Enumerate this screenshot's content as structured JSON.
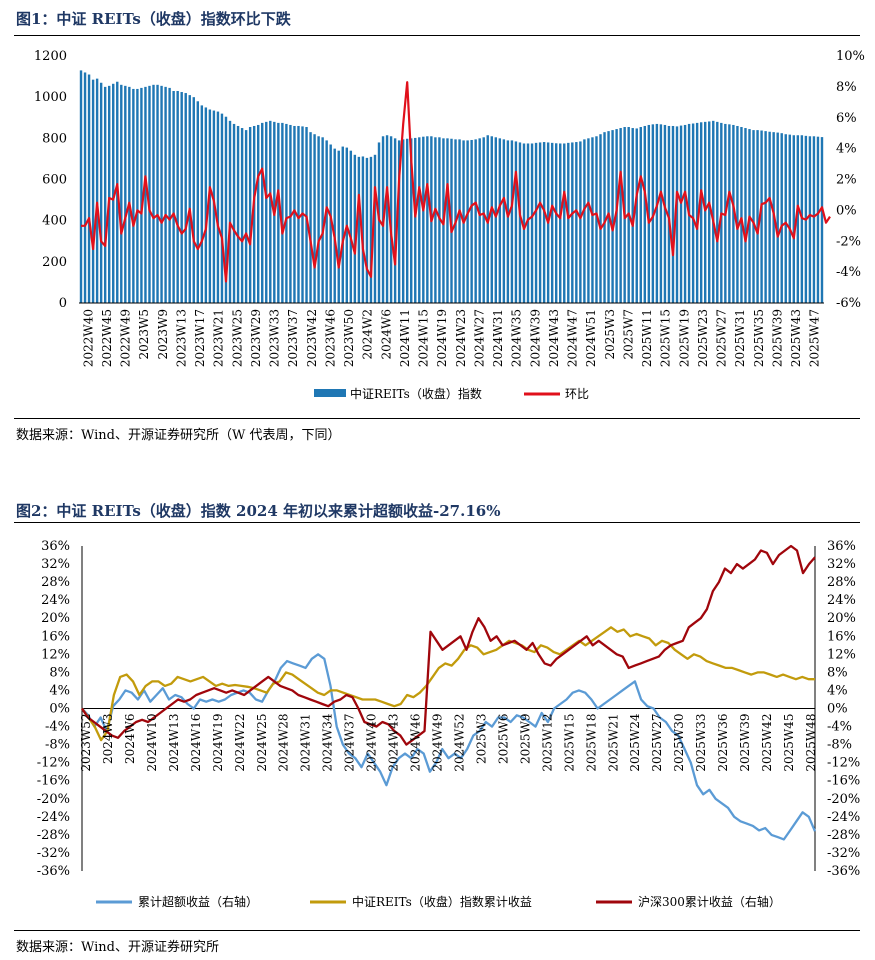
{
  "figures": [
    {
      "title": "图1：中证 REITs（收盘）指数环比下跌",
      "source": "数据来源：Wind、开源证券研究所（W 代表周，下同）"
    },
    {
      "title": "图2：中证 REITs（收盘）指数 2024 年初以来累计超额收益-27.16%",
      "source": "数据来源：Wind、开源证券研究所"
    }
  ],
  "colors": {
    "bar": "#1f77b4",
    "line_red": "#e0101b",
    "line_blue": "#5b9bd5",
    "line_gold": "#c29b0c",
    "line_darkred": "#a0060c",
    "title": "#1f3864"
  },
  "chart_data": [
    {
      "type": "bar",
      "combo": "bar + line (dual axis)",
      "x_ticks": [
        "2022W40",
        "2022W45",
        "2022W49",
        "2023W5",
        "2023W9",
        "2023W13",
        "2023W17",
        "2023W21",
        "2023W25",
        "2023W29",
        "2023W33",
        "2023W37",
        "2023W42",
        "2023W46",
        "2023W50",
        "2024W2",
        "2024W6",
        "2024W11",
        "2024W15",
        "2024W19",
        "2024W23",
        "2024W27",
        "2024W31",
        "2024W35",
        "2024W39",
        "2024W43",
        "2024W47",
        "2024W51",
        "2025W3",
        "2025W7",
        "2025W11",
        "2025W15",
        "2025W19",
        "2025W23",
        "2025W27",
        "2025W31",
        "2025W35",
        "2025W39",
        "2025W43",
        "2025W47"
      ],
      "y_left": {
        "range": [
          0,
          1200
        ],
        "ticks": [
          "0",
          "200",
          "400",
          "600",
          "800",
          "1000",
          "1200"
        ]
      },
      "y_right": {
        "range": [
          -6,
          10
        ],
        "ticks": [
          "-6%",
          "-4%",
          "-2%",
          "0%",
          "2%",
          "4%",
          "6%",
          "8%",
          "10%"
        ]
      },
      "legend": [
        "中证REITs（收盘）指数",
        "环比"
      ],
      "legend_position": "bottom",
      "series": [
        {
          "name": "中证REITs（收盘）指数",
          "axis": "left",
          "values": [
            1130,
            1120,
            1110,
            1085,
            1090,
            1070,
            1050,
            1055,
            1065,
            1075,
            1060,
            1055,
            1050,
            1040,
            1040,
            1045,
            1050,
            1055,
            1060,
            1060,
            1055,
            1050,
            1045,
            1030,
            1030,
            1025,
            1020,
            1010,
            1000,
            980,
            960,
            950,
            940,
            935,
            930,
            920,
            905,
            885,
            870,
            860,
            850,
            840,
            855,
            860,
            865,
            875,
            880,
            885,
            880,
            875,
            875,
            870,
            865,
            860,
            860,
            858,
            855,
            830,
            820,
            810,
            805,
            790,
            770,
            750,
            740,
            760,
            755,
            740,
            720,
            710,
            712,
            705,
            710,
            720,
            780,
            810,
            815,
            810,
            800,
            790,
            795,
            798,
            800,
            802,
            805,
            808,
            810,
            810,
            805,
            805,
            800,
            800,
            798,
            795,
            795,
            790,
            790,
            792,
            795,
            800,
            805,
            815,
            810,
            805,
            800,
            795,
            790,
            790,
            785,
            780,
            775,
            775,
            775,
            778,
            780,
            782,
            780,
            778,
            776,
            775,
            775,
            778,
            780,
            782,
            785,
            795,
            800,
            805,
            810,
            820,
            830,
            835,
            840,
            845,
            850,
            855,
            855,
            850,
            848,
            855,
            860,
            865,
            868,
            870,
            868,
            865,
            860,
            860,
            858,
            862,
            865,
            870,
            872,
            875,
            878,
            880,
            882,
            885,
            880,
            875,
            870,
            868,
            865,
            860,
            855,
            850,
            845,
            840,
            840,
            838,
            835,
            832,
            830,
            828,
            825,
            820,
            818,
            815,
            815,
            815,
            812,
            810,
            810,
            808,
            806
          ]
        },
        {
          "name": "环比",
          "axis": "right",
          "unit": "%",
          "values": [
            -1.0,
            -1.0,
            -0.5,
            -2.5,
            0.5,
            -2.0,
            -2.3,
            0.8,
            0.7,
            1.7,
            -1.5,
            -0.5,
            0.5,
            -1.0,
            0.0,
            -0.2,
            2.2,
            0.0,
            -0.5,
            -0.3,
            -0.8,
            -0.3,
            -0.6,
            -0.2,
            -1.0,
            -1.5,
            -1.2,
            0.1,
            -2.0,
            -2.5,
            -2.0,
            -1.2,
            1.5,
            0.6,
            -1.0,
            -1.8,
            -4.6,
            -0.8,
            -1.3,
            -1.7,
            -2.0,
            -1.5,
            -2.2,
            0.8,
            2.2,
            2.7,
            0.8,
            1.1,
            -0.3,
            1.3,
            -1.5,
            -0.5,
            -0.4,
            0.0,
            -0.5,
            -0.2,
            -0.4,
            -2.0,
            -3.7,
            -2.0,
            -1.5,
            0.2,
            -0.4,
            -1.8,
            -3.7,
            -2.0,
            -1.0,
            -1.8,
            -2.8,
            1.0,
            -2.5,
            -3.8,
            -4.3,
            1.5,
            -0.6,
            -1.0,
            1.5,
            -1.5,
            -3.5,
            2.0,
            5.6,
            8.3,
            3.3,
            -0.4,
            1.5,
            0.0,
            1.7,
            -0.7,
            0.1,
            -0.5,
            -0.9,
            1.7,
            -1.4,
            -0.8,
            0.0,
            -0.8,
            -0.2,
            0.3,
            0.5,
            -0.3,
            -0.2,
            -0.8,
            0.2,
            -0.4,
            0.3,
            0.8,
            -0.4,
            0.3,
            2.5,
            -0.3,
            -1.2,
            -0.6,
            -0.4,
            0.0,
            0.5,
            0.0,
            -0.8,
            0.3,
            -0.2,
            -0.5,
            1.2,
            -0.5,
            -0.2,
            0.0,
            -0.5,
            0.1,
            0.5,
            -0.3,
            -0.2,
            -1.2,
            -0.8,
            -0.2,
            -1.3,
            0.0,
            2.5,
            -0.5,
            -0.2,
            -1.0,
            1.0,
            2.2,
            1.2,
            -0.8,
            -0.4,
            0.3,
            1.2,
            0.2,
            -0.5,
            -2.9,
            1.2,
            0.5,
            1.2,
            -0.3,
            -0.5,
            -1.2,
            1.3,
            0.0,
            0.5,
            -0.7,
            -2.0,
            -0.2,
            -0.3,
            1.2,
            0.3,
            -1.2,
            -0.5,
            -2.0,
            -0.4,
            -0.8,
            -1.5,
            0.4,
            0.5,
            0.8,
            -0.2,
            -1.7,
            -1.0,
            -0.8,
            -1.2,
            -1.8,
            0.3,
            -0.5,
            -0.6,
            -0.3,
            -0.4,
            -0.2,
            0.2,
            -0.8,
            -0.4
          ]
        }
      ]
    },
    {
      "type": "line",
      "x_ticks": [
        "2023W52",
        "2024W3",
        "2024W6",
        "2024W10",
        "2024W13",
        "2024W16",
        "2024W19",
        "2024W22",
        "2024W25",
        "2024W28",
        "2024W31",
        "2024W34",
        "2024W37",
        "2024W40",
        "2024W43",
        "2024W46",
        "2024W49",
        "2024W52",
        "2025W3",
        "2025W6",
        "2025W9",
        "2025W12",
        "2025W15",
        "2025W18",
        "2025W21",
        "2025W24",
        "2025W27",
        "2025W30",
        "2025W33",
        "2025W36",
        "2025W39",
        "2025W42",
        "2025W45",
        "2025W48"
      ],
      "y_left": {
        "range": [
          -36,
          36
        ],
        "ticks": [
          "-36%",
          "-32%",
          "-28%",
          "-24%",
          "-20%",
          "-16%",
          "-12%",
          "-8%",
          "-4%",
          "0%",
          "4%",
          "8%",
          "12%",
          "16%",
          "20%",
          "24%",
          "28%",
          "32%",
          "36%"
        ]
      },
      "y_right": {
        "range": [
          -36,
          36
        ],
        "ticks": [
          "-36%",
          "-32%",
          "-28%",
          "-24%",
          "-20%",
          "-16%",
          "-12%",
          "-8%",
          "-4%",
          "0%",
          "4%",
          "8%",
          "12%",
          "16%",
          "20%",
          "24%",
          "28%",
          "32%",
          "36%"
        ]
      },
      "legend": [
        "累计超额收益（右轴）",
        "中证REITs（收盘）指数累计收益",
        "沪深300累计收益（右轴）"
      ],
      "legend_position": "bottom",
      "series": [
        {
          "name": "累计超额收益（右轴）",
          "axis": "right",
          "unit": "%",
          "values": [
            0,
            -1.5,
            -4,
            -2,
            -5,
            0.5,
            2,
            4,
            3.5,
            2,
            4,
            1.5,
            3,
            4.5,
            2,
            3,
            2.5,
            1,
            0,
            2,
            1.5,
            2,
            1.5,
            2,
            3,
            3.5,
            4,
            3.5,
            2,
            1.5,
            4,
            6,
            9,
            10.5,
            10,
            9.5,
            9,
            11,
            12,
            11,
            5,
            -4,
            -8,
            -10,
            -11,
            -13,
            -10,
            -12,
            -14,
            -17,
            -13,
            -11,
            -10,
            -11,
            -9,
            -10,
            -14,
            -12,
            -9,
            -11,
            -10,
            -11,
            -9,
            -6,
            -5,
            -3,
            -4,
            -2,
            -2,
            -3,
            -1.5,
            -2,
            -3,
            -4,
            -1,
            -3,
            0,
            1,
            2,
            3.5,
            4,
            3.5,
            2,
            0,
            1,
            2,
            3,
            4,
            5,
            6,
            2,
            0.5,
            0,
            -2,
            -3,
            -5,
            -6,
            -9,
            -12,
            -17,
            -19,
            -18,
            -20,
            -21,
            -22,
            -24,
            -25,
            -25.5,
            -26,
            -27,
            -26.5,
            -28,
            -28.5,
            -29,
            -27,
            -25,
            -23,
            -24,
            -27.2
          ]
        },
        {
          "name": "中证REITs（收盘）指数累计收益",
          "axis": "left",
          "unit": "%",
          "values": [
            0,
            -2,
            -4,
            -7,
            -5,
            3,
            7,
            7.5,
            6,
            3,
            5,
            6,
            6,
            5,
            5.5,
            7,
            6.5,
            6,
            6.5,
            7,
            6,
            5,
            5.5,
            5,
            5.2,
            5,
            4.8,
            4.5,
            4,
            3.5,
            5.5,
            6,
            8,
            7.5,
            6.5,
            5.5,
            4.5,
            3.5,
            3,
            4,
            4,
            3.5,
            3,
            2.5,
            2,
            2,
            2,
            1.5,
            1,
            0.5,
            1,
            3,
            2.5,
            3.5,
            5,
            7,
            9,
            10,
            9.5,
            11,
            13,
            14,
            13.5,
            12,
            12.5,
            13,
            14,
            15,
            14.5,
            14,
            13,
            12.5,
            14,
            13.5,
            12.5,
            12,
            13,
            14,
            15,
            14,
            15,
            16,
            17,
            18,
            17,
            17.5,
            16,
            16.5,
            16,
            15.5,
            14,
            15,
            14.5,
            13,
            12,
            11,
            12,
            11.5,
            10.5,
            10,
            9.5,
            9,
            9,
            8.5,
            8,
            7.5,
            8,
            8,
            7.5,
            7,
            7.5,
            7,
            6.5,
            7,
            6.5,
            6.5
          ]
        },
        {
          "name": "沪深300累计收益（右轴）",
          "axis": "right",
          "unit": "%",
          "values": [
            0,
            -2,
            -3,
            -4,
            -5,
            -6,
            -6.5,
            -5,
            -4,
            -3,
            -2.5,
            -3,
            -2,
            -1,
            0,
            1,
            2,
            1.5,
            2,
            3,
            3.5,
            4,
            4.5,
            4,
            3.5,
            4,
            3.5,
            3,
            4,
            5,
            6,
            7,
            6,
            5,
            4.5,
            4,
            3,
            2.5,
            2,
            1.5,
            1,
            0.5,
            1.5,
            2,
            3,
            2.5,
            0,
            -3,
            -3.5,
            -4,
            -3,
            -3.5,
            -5,
            -6,
            -8,
            -7,
            -6,
            -5,
            17,
            15,
            13,
            14,
            15,
            16,
            13,
            17,
            20,
            18,
            15,
            16,
            14,
            14.5,
            15,
            14,
            13,
            14.5,
            12,
            10,
            9.5,
            11,
            12,
            13,
            14,
            15,
            16,
            14,
            15,
            14,
            13,
            12,
            11.5,
            9,
            9.5,
            10,
            10.5,
            11,
            11.5,
            13,
            14,
            14.5,
            15,
            18,
            19,
            20,
            22,
            26,
            28,
            31,
            30,
            32,
            31,
            32,
            33,
            35,
            34.5,
            32,
            34,
            35,
            36,
            35,
            30,
            32,
            33.5
          ]
        }
      ]
    }
  ]
}
